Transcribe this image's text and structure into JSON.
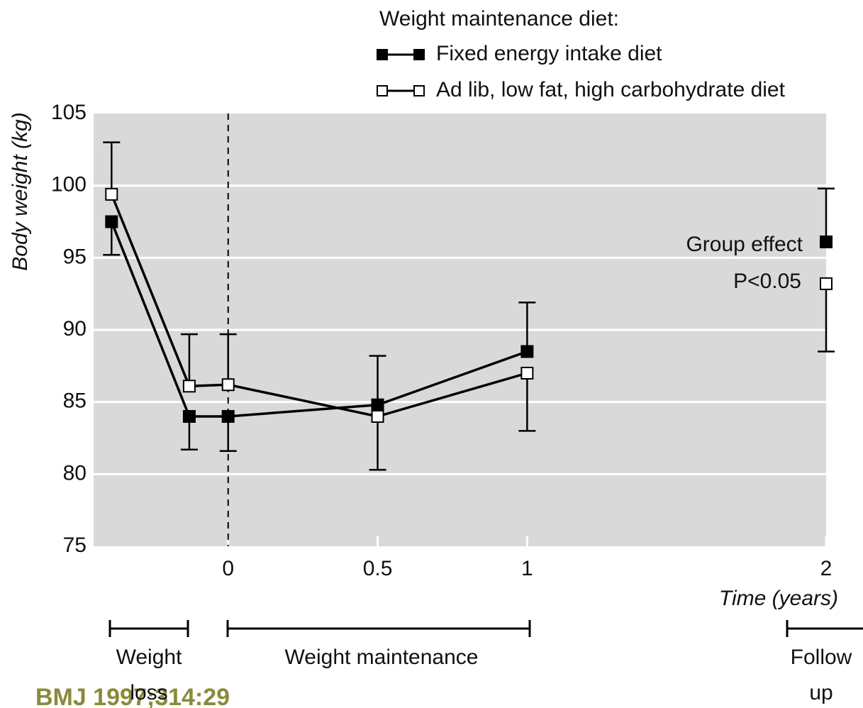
{
  "chart_data": {
    "type": "line",
    "legend_title": "Weight maintenance diet:",
    "y_label": "Body weight (kg)",
    "x_label": "Time (years)",
    "annotations": [
      "Group effect",
      "P<0.05"
    ],
    "phases": [
      {
        "label": "Weight",
        "label2": "loss"
      },
      {
        "label": "Weight maintenance"
      },
      {
        "label": "Follow",
        "label2": "up"
      }
    ],
    "source": "BMJ 1997;314:29",
    "x": [
      -0.39,
      -0.13,
      0,
      0.5,
      1
    ],
    "follow_up_x": 2,
    "series": [
      {
        "name": "Fixed energy intake diet",
        "color": "#000000",
        "values": [
          97.5,
          84,
          84,
          84.8,
          88.5
        ],
        "error_low": [
          2.3,
          2.3,
          2.4,
          null,
          null
        ],
        "error_high": [
          null,
          null,
          null,
          3.4,
          3.4
        ],
        "follow_up_value": 96.1,
        "follow_up_error_high": 3.7
      },
      {
        "name": "Ad lib, low fat, high carbohydrate diet",
        "color": "#ffffff",
        "values": [
          99.4,
          86.1,
          86.2,
          84,
          87
        ],
        "error_low": [
          null,
          null,
          null,
          3.7,
          4.0
        ],
        "error_high": [
          3.6,
          3.6,
          3.5,
          null,
          null
        ],
        "follow_up_value": 93.2,
        "follow_up_error_low": 4.7
      }
    ],
    "xlim": [
      -0.45,
      2
    ],
    "xticks": [
      0,
      0.5,
      1,
      2
    ],
    "ylim": [
      75,
      105
    ],
    "yticks": [
      75,
      80,
      85,
      90,
      95,
      100,
      105
    ],
    "grid": true
  }
}
